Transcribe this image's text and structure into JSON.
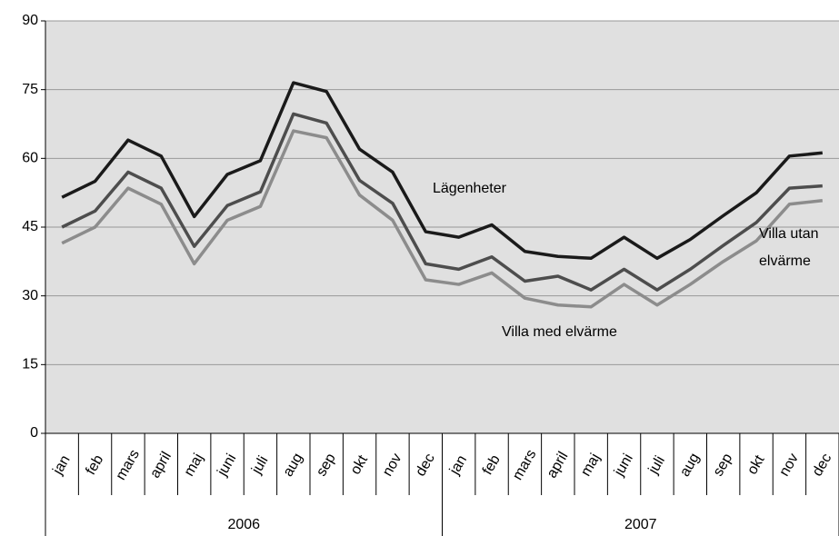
{
  "chart_data": {
    "type": "line",
    "categories": [
      "jan",
      "feb",
      "mars",
      "april",
      "maj",
      "juni",
      "juli",
      "aug",
      "sep",
      "okt",
      "nov",
      "dec",
      "jan",
      "feb",
      "mars",
      "april",
      "maj",
      "juni",
      "juli",
      "aug",
      "sep",
      "okt",
      "nov",
      "dec"
    ],
    "years": [
      "2006",
      "2007"
    ],
    "ylim": [
      0,
      90
    ],
    "yticks": [
      0,
      15,
      30,
      45,
      60,
      75,
      90
    ],
    "grid": true,
    "series": [
      {
        "name": "Lägenheter",
        "color": "#1a1a1a",
        "values": [
          51.5,
          55,
          64,
          60.5,
          47.3,
          56.5,
          59.5,
          76.5,
          74.6,
          62,
          57,
          44,
          42.8,
          45.5,
          39.7,
          38.6,
          38.2,
          42.8,
          38.2,
          42.3,
          47.5,
          52.5,
          60.5,
          61.2
        ]
      },
      {
        "name": "Villa utan elvärme",
        "color": "#4d4d4d",
        "values": [
          45,
          48.5,
          57,
          53.5,
          40.8,
          49.7,
          52.7,
          69.7,
          67.7,
          55.2,
          50.2,
          37,
          35.8,
          38.5,
          33.2,
          34.3,
          31.3,
          35.8,
          31.3,
          35.8,
          41,
          46,
          53.5,
          54
        ]
      },
      {
        "name": "Villa med elvärme",
        "color": "#8c8c8c",
        "values": [
          41.5,
          45,
          53.5,
          50,
          37,
          46.5,
          49.5,
          66,
          64.5,
          52,
          46.5,
          33.5,
          32.5,
          35,
          29.5,
          28,
          27.6,
          32.5,
          28,
          32.5,
          37.5,
          42,
          50,
          50.8
        ]
      }
    ]
  }
}
